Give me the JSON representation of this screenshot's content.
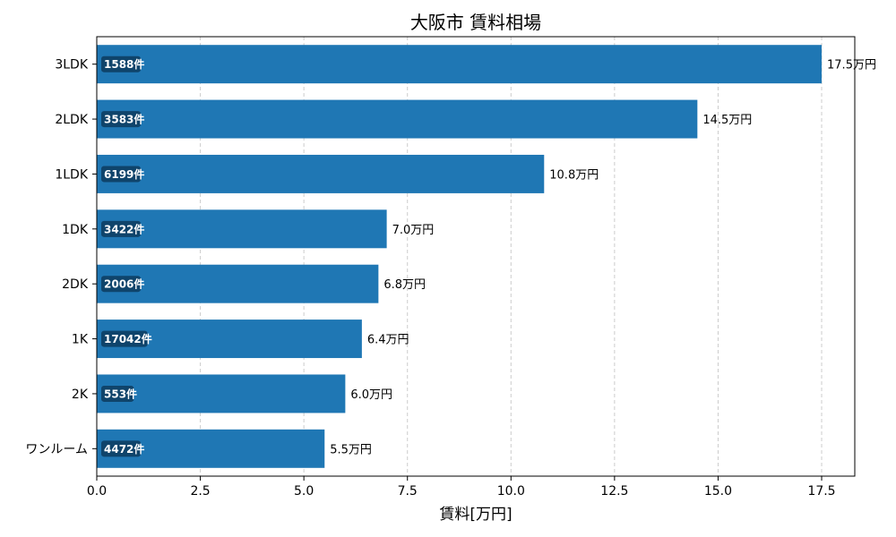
{
  "chart_data": {
    "type": "bar",
    "orientation": "horizontal",
    "title": "大阪市 賃料相場",
    "xlabel": "賃料[万円]",
    "ylabel": "",
    "xlim": [
      0,
      18.3
    ],
    "xticks": [
      0.0,
      2.5,
      5.0,
      7.5,
      10.0,
      12.5,
      15.0,
      17.5
    ],
    "xtick_labels": [
      "0.0",
      "2.5",
      "5.0",
      "7.5",
      "10.0",
      "12.5",
      "15.0",
      "17.5"
    ],
    "grid": "vertical dashed",
    "bar_color": "#1f77b4",
    "count_badge_color": "#0d3b5e",
    "categories": [
      "3LDK",
      "2LDK",
      "1LDK",
      "1DK",
      "2DK",
      "1K",
      "2K",
      "ワンルーム"
    ],
    "values": [
      17.5,
      14.5,
      10.8,
      7.0,
      6.8,
      6.4,
      6.0,
      5.5
    ],
    "value_labels": [
      "17.5万円",
      "14.5万円",
      "10.8万円",
      "7.0万円",
      "6.8万円",
      "6.4万円",
      "6.0万円",
      "5.5万円"
    ],
    "count_labels": [
      "1588件",
      "3583件",
      "6199件",
      "3422件",
      "2006件",
      "17042件",
      "553件",
      "4472件"
    ]
  }
}
